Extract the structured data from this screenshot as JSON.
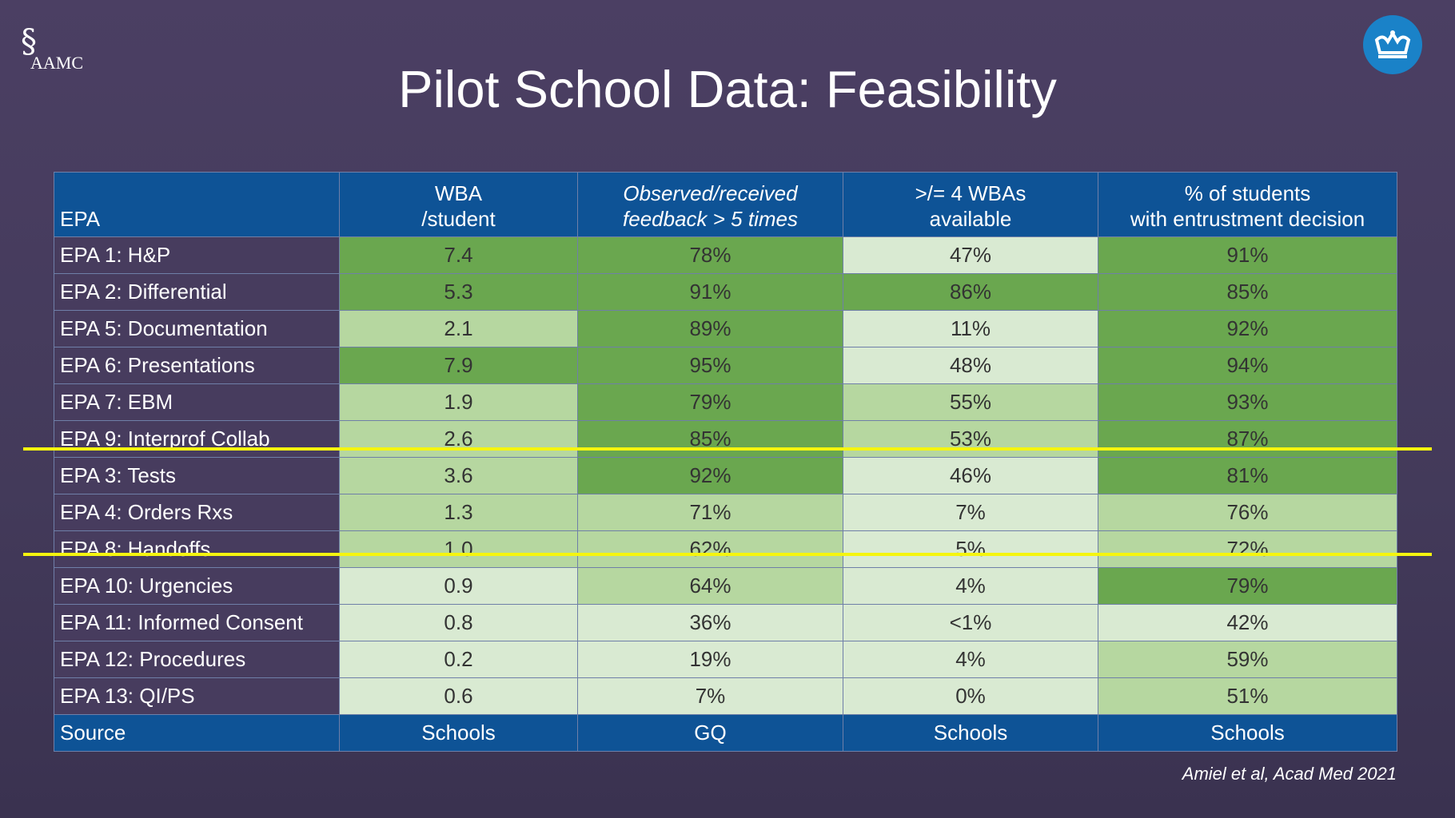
{
  "logo": {
    "text": "AAMC"
  },
  "title": "Pilot School Data: Feasibility",
  "table": {
    "headers": [
      [
        "EPA",
        ""
      ],
      [
        "WBA",
        "/student"
      ],
      [
        "Observed/received",
        "feedback > 5 times"
      ],
      [
        ">/= 4 WBAs",
        "available"
      ],
      [
        "% of students",
        "with entrustment decision"
      ]
    ],
    "rows": [
      {
        "label": "EPA 1: H&P",
        "values": [
          "7.4",
          "78%",
          "47%",
          "91%"
        ],
        "shade": [
          "d",
          "d",
          "l",
          "d"
        ]
      },
      {
        "label": "EPA 2: Differential",
        "values": [
          "5.3",
          "91%",
          "86%",
          "85%"
        ],
        "shade": [
          "d",
          "d",
          "d",
          "d"
        ]
      },
      {
        "label": "EPA 5: Documentation",
        "values": [
          "2.1",
          "89%",
          "11%",
          "92%"
        ],
        "shade": [
          "m",
          "d",
          "l",
          "d"
        ]
      },
      {
        "label": "EPA 6: Presentations",
        "values": [
          "7.9",
          "95%",
          "48%",
          "94%"
        ],
        "shade": [
          "d",
          "d",
          "l",
          "d"
        ]
      },
      {
        "label": "EPA 7: EBM",
        "values": [
          "1.9",
          "79%",
          "55%",
          "93%"
        ],
        "shade": [
          "m",
          "d",
          "m",
          "d"
        ]
      },
      {
        "label": "EPA 9: Interprof Collab",
        "values": [
          "2.6",
          "85%",
          "53%",
          "87%"
        ],
        "shade": [
          "m",
          "d",
          "m",
          "d"
        ]
      },
      {
        "label": "EPA 3: Tests",
        "values": [
          "3.6",
          "92%",
          "46%",
          "81%"
        ],
        "shade": [
          "m",
          "d",
          "l",
          "d"
        ]
      },
      {
        "label": "EPA 4: Orders Rxs",
        "values": [
          "1.3",
          "71%",
          "7%",
          "76%"
        ],
        "shade": [
          "m",
          "m",
          "l",
          "m"
        ]
      },
      {
        "label": "EPA 8: Handoffs",
        "values": [
          "1.0",
          "62%",
          "5%",
          "72%"
        ],
        "shade": [
          "m",
          "m",
          "l",
          "m"
        ]
      },
      {
        "label": "EPA 10: Urgencies",
        "values": [
          "0.9",
          "64%",
          "4%",
          "79%"
        ],
        "shade": [
          "l",
          "m",
          "l",
          "d"
        ]
      },
      {
        "label": "EPA 11: Informed Consent",
        "values": [
          "0.8",
          "36%",
          "<1%",
          "42%"
        ],
        "shade": [
          "l",
          "l",
          "l",
          "l"
        ]
      },
      {
        "label": "EPA 12: Procedures",
        "values": [
          "0.2",
          "19%",
          "4%",
          "59%"
        ],
        "shade": [
          "l",
          "l",
          "l",
          "m"
        ]
      },
      {
        "label": "EPA 13: QI/PS",
        "values": [
          "0.6",
          "7%",
          "0%",
          "51%"
        ],
        "shade": [
          "l",
          "l",
          "l",
          "m"
        ]
      }
    ],
    "source": {
      "label": "Source",
      "values": [
        "Schools",
        "GQ",
        "Schools",
        "Schools"
      ]
    }
  },
  "citation": "Amiel et al, Acad Med 2021",
  "colors": {
    "dark_green": "#6aa74f",
    "medium_green": "#b6d7a0",
    "light_green": "#d9ead2",
    "header_blue": "#0e5396",
    "highlight": "#f5f50e"
  }
}
